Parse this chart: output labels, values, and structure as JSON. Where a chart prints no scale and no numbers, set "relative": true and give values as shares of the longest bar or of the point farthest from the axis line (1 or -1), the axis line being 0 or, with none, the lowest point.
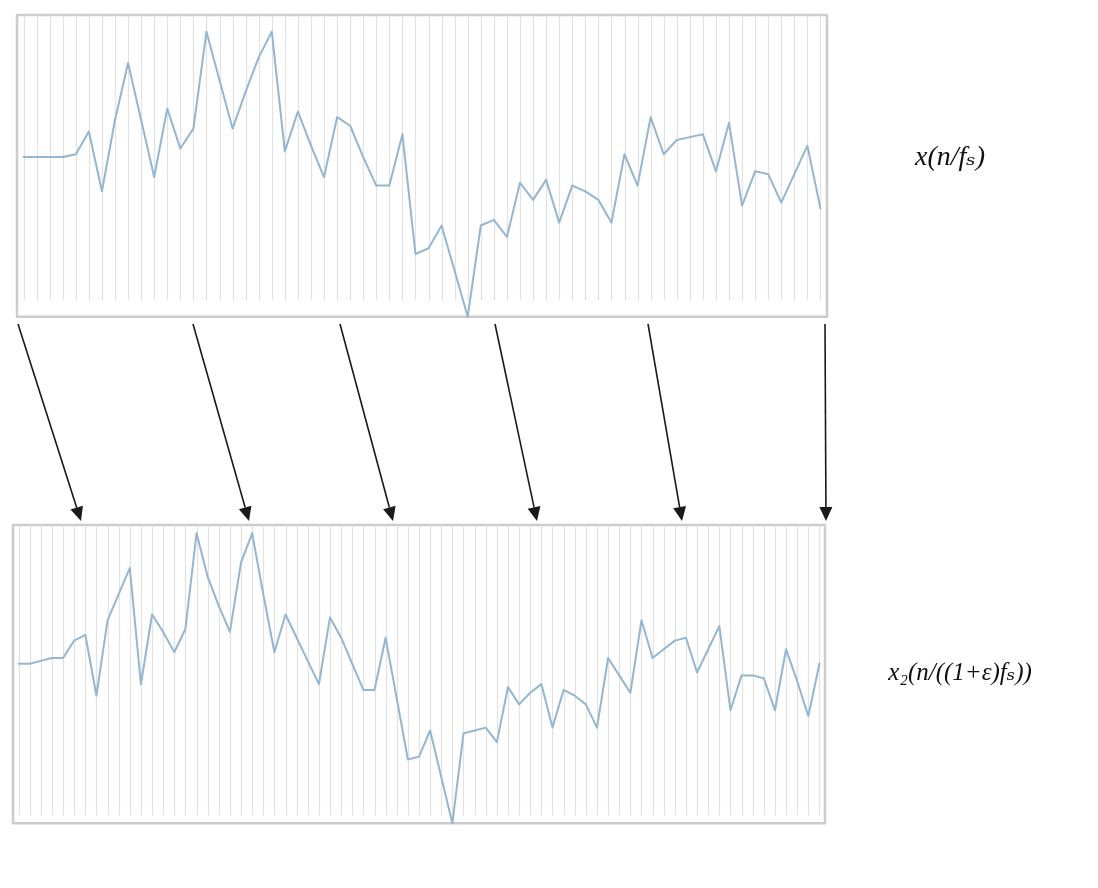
{
  "chart_data": [
    {
      "type": "line",
      "relative": true,
      "grid": "x",
      "categories": [
        null,
        null,
        null,
        null,
        null,
        null,
        null,
        null,
        null,
        null,
        null,
        null,
        null,
        null,
        null,
        null,
        null,
        null,
        null,
        null,
        null,
        null,
        null,
        null,
        null,
        null,
        null,
        null,
        null,
        null,
        null,
        null,
        null,
        null,
        null,
        null,
        null,
        null,
        null,
        null,
        null,
        null,
        null,
        null,
        null,
        null,
        null,
        null,
        null,
        null,
        null,
        null,
        null,
        null,
        null,
        null,
        null,
        null,
        null,
        null,
        null,
        null
      ],
      "series": [
        {
          "name": "x(n/fₛ)",
          "color": "#94b6d0",
          "values": [
            0.56,
            0.56,
            0.56,
            0.56,
            0.57,
            0.65,
            0.44,
            0.69,
            0.89,
            0.69,
            0.49,
            0.73,
            0.59,
            0.66,
            1,
            0.83,
            0.66,
            0.79,
            0.91,
            1,
            0.58,
            0.72,
            0.6,
            0.49,
            0.7,
            0.67,
            0.56,
            0.46,
            0.46,
            0.64,
            0.22,
            0.24,
            0.32,
            0.16,
            0,
            0.32,
            0.34,
            0.28,
            0.47,
            0.41,
            0.48,
            0.33,
            0.46,
            0.44,
            0.41,
            0.33,
            0.57,
            0.46,
            0.7,
            0.57,
            0.62,
            0.63,
            0.64,
            0.51,
            0.68,
            0.39,
            0.51,
            0.5,
            0.4,
            0.5,
            0.6,
            0.38
          ]
        }
      ]
    },
    {
      "type": "line",
      "relative": true,
      "grid": "x",
      "categories": [
        null,
        null,
        null,
        null,
        null,
        null,
        null,
        null,
        null,
        null,
        null,
        null,
        null,
        null,
        null,
        null,
        null,
        null,
        null,
        null,
        null,
        null,
        null,
        null,
        null,
        null,
        null,
        null,
        null,
        null,
        null,
        null,
        null,
        null,
        null,
        null,
        null,
        null,
        null,
        null,
        null,
        null,
        null,
        null,
        null,
        null,
        null,
        null,
        null,
        null,
        null,
        null,
        null,
        null,
        null,
        null,
        null,
        null,
        null,
        null,
        null,
        null,
        null,
        null,
        null,
        null,
        null,
        null,
        null,
        null,
        null,
        null,
        null
      ],
      "series": [
        {
          "name": "x₂(n/((1+ε)fₛ))",
          "color": "#94b6d0",
          "values": [
            0.55,
            0.55,
            0.56,
            0.57,
            0.57,
            0.63,
            0.65,
            0.44,
            0.7,
            0.79,
            0.88,
            0.48,
            0.72,
            0.66,
            0.59,
            0.67,
            1,
            0.85,
            0.75,
            0.66,
            0.9,
            1,
            0.79,
            0.59,
            0.72,
            0.64,
            0.56,
            0.48,
            0.71,
            0.64,
            0.55,
            0.46,
            0.46,
            0.64,
            0.43,
            0.22,
            0.23,
            0.32,
            0.16,
            0,
            0.31,
            0.32,
            0.33,
            0.28,
            0.47,
            0.41,
            0.45,
            0.48,
            0.33,
            0.46,
            0.44,
            0.41,
            0.33,
            0.57,
            0.51,
            0.45,
            0.7,
            0.57,
            0.6,
            0.63,
            0.64,
            0.52,
            0.6,
            0.68,
            0.39,
            0.51,
            0.51,
            0.5,
            0.39,
            0.6,
            0.49,
            0.37,
            0.55
          ]
        }
      ]
    }
  ]
}
